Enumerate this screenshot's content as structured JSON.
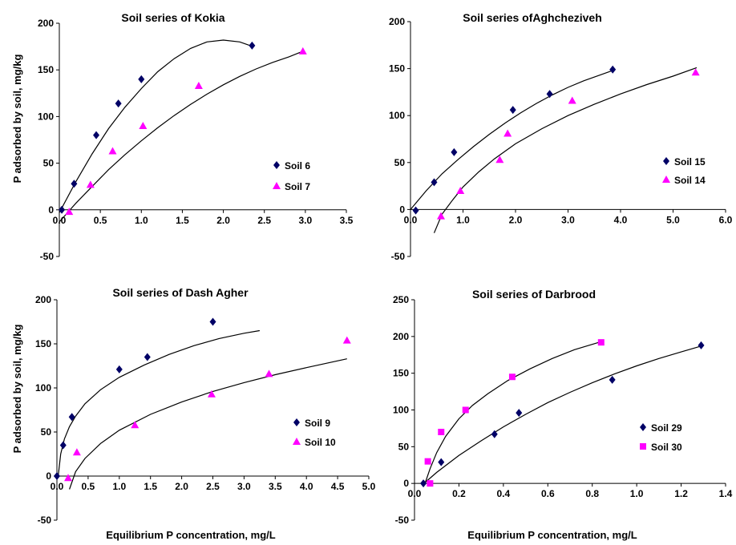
{
  "figure": {
    "ylabel": "P adsorbed by soil, mg/kg",
    "xlabel": "Equilibrium P concentration, mg/L",
    "colors": {
      "axis": "#000000",
      "diamond": "#000066",
      "pink": "#ff00ff",
      "curve": "#000000"
    }
  },
  "chart_data": [
    {
      "type": "scatter",
      "title": "Soil series of Kokia",
      "xlim": [
        0,
        3.5
      ],
      "ylim": [
        -50,
        200
      ],
      "x_ticks": [
        0.0,
        0.5,
        1.0,
        1.5,
        2.0,
        2.5,
        3.0,
        3.5
      ],
      "x_tick_labels": [
        "0.0",
        "0.5",
        "1.0",
        "1.5",
        "2.0",
        "2.5",
        "3.0",
        "3.5"
      ],
      "y_ticks": [
        -50,
        0,
        50,
        100,
        150,
        200
      ],
      "y_tick_labels": [
        "-50",
        "0",
        "50",
        "100",
        "150",
        "200"
      ],
      "legend_position": "right",
      "series": [
        {
          "name": "Soil 6",
          "marker": "diamond",
          "color": "#000066",
          "points": [
            [
              0.03,
              0
            ],
            [
              0.18,
              28
            ],
            [
              0.45,
              80
            ],
            [
              0.72,
              114
            ],
            [
              1.0,
              140
            ],
            [
              2.35,
              176
            ]
          ],
          "fit": [
            [
              0.0,
              -3
            ],
            [
              0.2,
              30
            ],
            [
              0.4,
              60
            ],
            [
              0.6,
              87
            ],
            [
              0.8,
              110
            ],
            [
              1.0,
              130
            ],
            [
              1.2,
              148
            ],
            [
              1.4,
              162
            ],
            [
              1.6,
              173
            ],
            [
              1.8,
              180
            ],
            [
              2.0,
              182
            ],
            [
              2.2,
              180
            ],
            [
              2.36,
              175
            ]
          ]
        },
        {
          "name": "Soil 7",
          "marker": "triangle",
          "color": "#ff00ff",
          "points": [
            [
              0.12,
              -2
            ],
            [
              0.38,
              27
            ],
            [
              0.65,
              63
            ],
            [
              1.02,
              90
            ],
            [
              1.7,
              133
            ],
            [
              2.97,
              170
            ]
          ],
          "fit": [
            [
              0.0,
              -13
            ],
            [
              0.2,
              7
            ],
            [
              0.4,
              25
            ],
            [
              0.6,
              43
            ],
            [
              0.8,
              59
            ],
            [
              1.0,
              74
            ],
            [
              1.2,
              88
            ],
            [
              1.4,
              101
            ],
            [
              1.6,
              113
            ],
            [
              1.8,
              124
            ],
            [
              2.0,
              134
            ],
            [
              2.2,
              143
            ],
            [
              2.4,
              151
            ],
            [
              2.6,
              158
            ],
            [
              2.8,
              164
            ],
            [
              2.97,
              170
            ]
          ]
        }
      ]
    },
    {
      "type": "scatter",
      "title": "Soil series ofAghcheziveh",
      "xlim": [
        0,
        6
      ],
      "ylim": [
        -50,
        200
      ],
      "x_ticks": [
        0,
        1,
        2,
        3,
        4,
        5,
        6
      ],
      "x_tick_labels": [
        "0.0",
        "1.0",
        "2.0",
        "3.0",
        "4.0",
        "5.0",
        "6.0"
      ],
      "y_ticks": [
        -50,
        0,
        50,
        100,
        150,
        200
      ],
      "y_tick_labels": [
        "-50",
        "0",
        "50",
        "100",
        "150",
        "200"
      ],
      "legend_position": "right",
      "series": [
        {
          "name": "Soil 15",
          "marker": "diamond",
          "color": "#000066",
          "points": [
            [
              0.1,
              -1
            ],
            [
              0.45,
              29
            ],
            [
              0.83,
              61
            ],
            [
              1.95,
              106
            ],
            [
              2.65,
              123
            ],
            [
              3.85,
              149
            ]
          ],
          "fit": [
            [
              0.0,
              0
            ],
            [
              0.3,
              20
            ],
            [
              0.6,
              38
            ],
            [
              0.9,
              53
            ],
            [
              1.2,
              67
            ],
            [
              1.5,
              80
            ],
            [
              1.8,
              92
            ],
            [
              2.1,
              103
            ],
            [
              2.4,
              113
            ],
            [
              2.7,
              122
            ],
            [
              3.0,
              130
            ],
            [
              3.3,
              137
            ],
            [
              3.6,
              143
            ],
            [
              3.85,
              148
            ]
          ]
        },
        {
          "name": "Soil 14",
          "marker": "triangle",
          "color": "#ff00ff",
          "points": [
            [
              0.58,
              -7
            ],
            [
              0.95,
              20
            ],
            [
              1.7,
              53
            ],
            [
              1.85,
              81
            ],
            [
              3.08,
              116
            ],
            [
              5.43,
              146
            ]
          ],
          "fit": [
            [
              0.45,
              -25
            ],
            [
              0.6,
              -5
            ],
            [
              0.8,
              10
            ],
            [
              1.0,
              24
            ],
            [
              1.3,
              40
            ],
            [
              1.6,
              54
            ],
            [
              2.0,
              70
            ],
            [
              2.5,
              86
            ],
            [
              3.0,
              100
            ],
            [
              3.5,
              112
            ],
            [
              4.0,
              123
            ],
            [
              4.5,
              133
            ],
            [
              5.0,
              142
            ],
            [
              5.45,
              151
            ]
          ]
        }
      ]
    },
    {
      "type": "scatter",
      "title": "Soil series of Dash Agher",
      "xlim": [
        0,
        5
      ],
      "ylim": [
        -50,
        200
      ],
      "x_ticks": [
        0.0,
        0.5,
        1.0,
        1.5,
        2.0,
        2.5,
        3.0,
        3.5,
        4.0,
        4.5,
        5.0
      ],
      "x_tick_labels": [
        "0.0",
        "0.5",
        "1.0",
        "1.5",
        "2.0",
        "2.5",
        "3.0",
        "3.5",
        "4.0",
        "4.5",
        "5.0"
      ],
      "y_ticks": [
        -50,
        0,
        50,
        100,
        150,
        200
      ],
      "y_tick_labels": [
        "-50",
        "0",
        "50",
        "100",
        "150",
        "200"
      ],
      "legend_position": "right",
      "series": [
        {
          "name": "Soil 9",
          "marker": "diamond",
          "color": "#000066",
          "points": [
            [
              0.0,
              0
            ],
            [
              0.1,
              35
            ],
            [
              0.24,
              67
            ],
            [
              1.0,
              121
            ],
            [
              1.45,
              135
            ],
            [
              2.5,
              175
            ]
          ],
          "fit": [
            [
              0.02,
              0
            ],
            [
              0.06,
              25
            ],
            [
              0.12,
              42
            ],
            [
              0.2,
              56
            ],
            [
              0.3,
              68
            ],
            [
              0.45,
              82
            ],
            [
              0.7,
              98
            ],
            [
              1.0,
              112
            ],
            [
              1.4,
              126
            ],
            [
              1.8,
              138
            ],
            [
              2.2,
              148
            ],
            [
              2.6,
              156
            ],
            [
              3.0,
              162
            ],
            [
              3.25,
              165
            ]
          ]
        },
        {
          "name": "Soil 10",
          "marker": "triangle",
          "color": "#ff00ff",
          "points": [
            [
              0.18,
              -2
            ],
            [
              0.32,
              27
            ],
            [
              1.25,
              58
            ],
            [
              2.48,
              93
            ],
            [
              3.4,
              116
            ],
            [
              4.65,
              154
            ]
          ],
          "fit": [
            [
              0.2,
              -15
            ],
            [
              0.3,
              5
            ],
            [
              0.45,
              20
            ],
            [
              0.7,
              37
            ],
            [
              1.0,
              52
            ],
            [
              1.5,
              70
            ],
            [
              2.0,
              84
            ],
            [
              2.5,
              96
            ],
            [
              3.0,
              106
            ],
            [
              3.5,
              115
            ],
            [
              4.0,
              123
            ],
            [
              4.65,
              133
            ]
          ]
        }
      ]
    },
    {
      "type": "scatter",
      "title": "Soil series of Darbrood",
      "xlim": [
        0,
        1.4
      ],
      "ylim": [
        -50,
        250
      ],
      "x_ticks": [
        0.0,
        0.2,
        0.4,
        0.6,
        0.8,
        1.0,
        1.2,
        1.4
      ],
      "x_tick_labels": [
        "0.0",
        "0.2",
        "0.4",
        "0.6",
        "0.8",
        "1.0",
        "1.2",
        "1.4"
      ],
      "y_ticks": [
        -50,
        0,
        50,
        100,
        150,
        200,
        250
      ],
      "y_tick_labels": [
        "-50",
        "0",
        "50",
        "100",
        "150",
        "200",
        "250"
      ],
      "legend_position": "right",
      "series": [
        {
          "name": "Soil 29",
          "marker": "diamond",
          "color": "#000066",
          "points": [
            [
              0.04,
              0
            ],
            [
              0.12,
              29
            ],
            [
              0.36,
              67
            ],
            [
              0.47,
              96
            ],
            [
              0.89,
              141
            ],
            [
              1.29,
              188
            ]
          ],
          "fit": [
            [
              0.035,
              -2
            ],
            [
              0.1,
              15
            ],
            [
              0.2,
              38
            ],
            [
              0.3,
              58
            ],
            [
              0.4,
              77
            ],
            [
              0.5,
              94
            ],
            [
              0.6,
              110
            ],
            [
              0.7,
              124
            ],
            [
              0.8,
              137
            ],
            [
              0.9,
              149
            ],
            [
              1.0,
              160
            ],
            [
              1.1,
              170
            ],
            [
              1.2,
              179
            ],
            [
              1.29,
              187
            ]
          ]
        },
        {
          "name": "Soil 30",
          "marker": "square",
          "color": "#ff00ff",
          "points": [
            [
              0.06,
              30
            ],
            [
              0.07,
              0
            ],
            [
              0.12,
              70
            ],
            [
              0.23,
              100
            ],
            [
              0.44,
              145
            ],
            [
              0.84,
              192
            ]
          ],
          "fit": [
            [
              0.045,
              -2
            ],
            [
              0.07,
              20
            ],
            [
              0.1,
              42
            ],
            [
              0.14,
              64
            ],
            [
              0.2,
              88
            ],
            [
              0.26,
              106
            ],
            [
              0.33,
              122
            ],
            [
              0.42,
              140
            ],
            [
              0.52,
              156
            ],
            [
              0.62,
              170
            ],
            [
              0.72,
              182
            ],
            [
              0.84,
              193
            ]
          ]
        }
      ]
    }
  ]
}
